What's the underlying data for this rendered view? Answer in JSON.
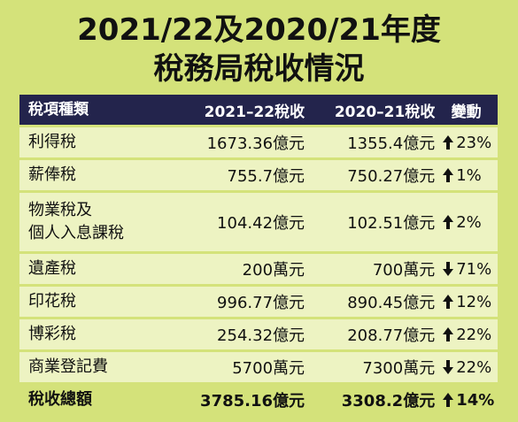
{
  "title_line1": "2021/22及2020/21年度",
  "title_line2": "稅務局稅收情況",
  "headers": [
    "稅項種類",
    "2021–22稅收",
    "2020–21稅收",
    "變動"
  ],
  "rows": [
    {
      "type": "利得稅",
      "y2122": "1673.36億元",
      "y2021": "1355.4億元",
      "dir": "up",
      "change": "23%"
    },
    {
      "type": "薪俸稅",
      "y2122": "755.7億元",
      "y2021": "750.27億元",
      "dir": "up",
      "change": "1%"
    },
    {
      "type_line1": "物業稅及",
      "type_line2": "個人入息課稅",
      "y2122": "104.42億元",
      "y2021": "102.51億元",
      "dir": "up",
      "change": "2%"
    },
    {
      "type": "遺產稅",
      "y2122": "200萬元",
      "y2021": "700萬元",
      "dir": "down",
      "change": "71%"
    },
    {
      "type": "印花稅",
      "y2122": "996.77億元",
      "y2021": "890.45億元",
      "dir": "up",
      "change": "12%"
    },
    {
      "type": "博彩稅",
      "y2122": "254.32億元",
      "y2021": "208.77億元",
      "dir": "up",
      "change": "22%"
    },
    {
      "type": "商業登記費",
      "y2122": "5700萬元",
      "y2021": "7300萬元",
      "dir": "down",
      "change": "22%"
    }
  ],
  "total": {
    "type": "稅收總額",
    "y2122": "3785.16億元",
    "y2021": "3308.2億元",
    "dir": "up",
    "change": "14%"
  }
}
